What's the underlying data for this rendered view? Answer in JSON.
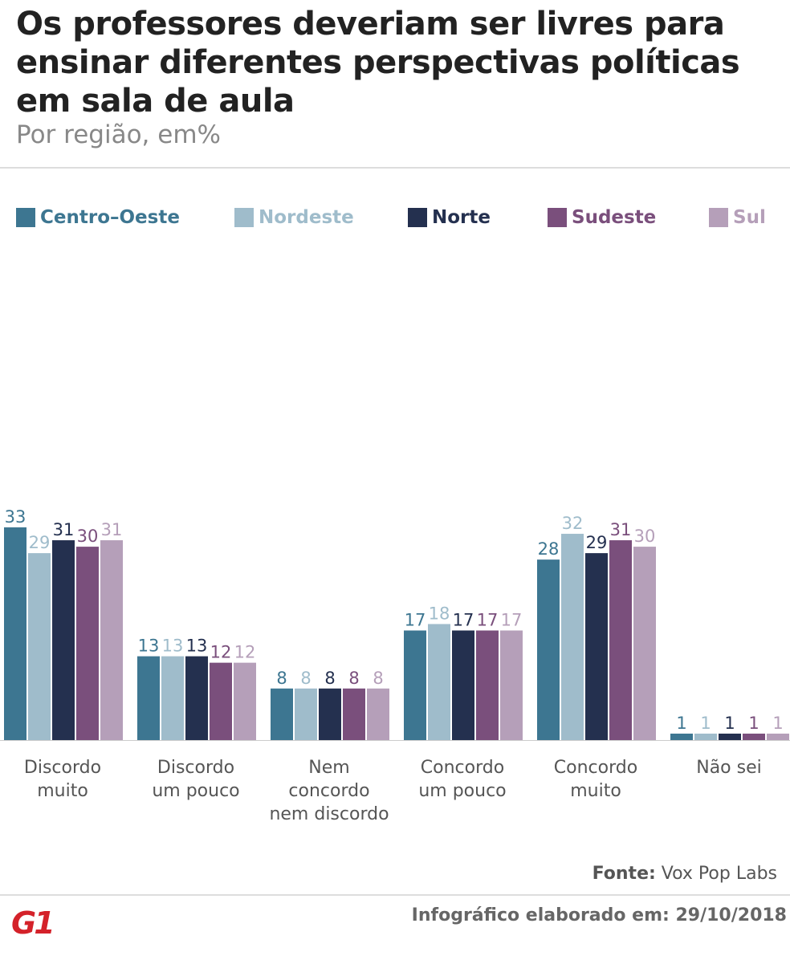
{
  "chart_data": {
    "type": "bar",
    "title": "Os professores deveriam ser livres para ensinar diferentes perspectivas políticas em sala de aula",
    "subtitle": "Por região, em%",
    "categories": [
      "Discordo\nmuito",
      "Discordo\num pouco",
      "Nem\nconcordo\nnem discordo",
      "Concordo\num pouco",
      "Concordo\nmuito",
      "Não sei"
    ],
    "series": [
      {
        "name": "Centro–Oeste",
        "color": "#3d7691",
        "values": [
          33,
          13,
          8,
          17,
          28,
          1
        ]
      },
      {
        "name": "Nordeste",
        "color": "#9fbccb",
        "values": [
          29,
          13,
          8,
          18,
          32,
          1
        ]
      },
      {
        "name": "Norte",
        "color": "#24304f",
        "values": [
          31,
          13,
          8,
          17,
          29,
          1
        ]
      },
      {
        "name": "Sudeste",
        "color": "#7a4f7c",
        "values": [
          30,
          12,
          8,
          17,
          31,
          1
        ]
      },
      {
        "name": "Sul",
        "color": "#b59fb9",
        "values": [
          31,
          12,
          8,
          17,
          30,
          1
        ]
      }
    ]
  },
  "footer": {
    "source_label": "Fonte:",
    "source": "Vox Pop Labs",
    "credit": "Infográfico elaborado em: 29/10/2018",
    "logo": "G1"
  }
}
